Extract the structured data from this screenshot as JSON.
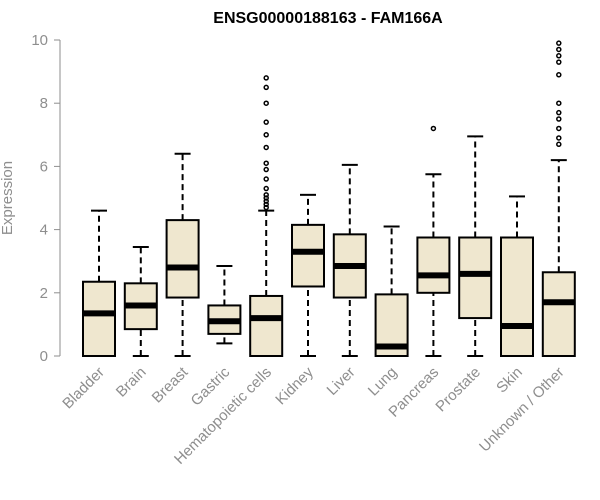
{
  "chart_data": {
    "type": "boxplot",
    "title": "ENSG00000188163 - FAM166A",
    "ylabel": "Expression",
    "xlabel": "",
    "ylim": [
      0,
      10
    ],
    "yticks": [
      0,
      2,
      4,
      6,
      8,
      10
    ],
    "grid": false,
    "colors": {
      "box_fill": "#efe7cf",
      "box_stroke": "#000000",
      "axis": "#8e8e8e",
      "title": "#000000"
    },
    "categories": [
      "Bladder",
      "Brain",
      "Breast",
      "Gastric",
      "Hematopoietic cells",
      "Kidney",
      "Liver",
      "Lung",
      "Pancreas",
      "Prostate",
      "Skin",
      "Unknown / Other"
    ],
    "boxes": [
      {
        "whisker_low": 0,
        "q1": 0,
        "median": 1.35,
        "q3": 2.35,
        "whisker_high": 4.6,
        "outliers": []
      },
      {
        "whisker_low": 0,
        "q1": 0.85,
        "median": 1.6,
        "q3": 2.3,
        "whisker_high": 3.45,
        "outliers": []
      },
      {
        "whisker_low": 0,
        "q1": 1.85,
        "median": 2.8,
        "q3": 4.3,
        "whisker_high": 6.4,
        "outliers": []
      },
      {
        "whisker_low": 0.4,
        "q1": 0.7,
        "median": 1.1,
        "q3": 1.6,
        "whisker_high": 2.85,
        "outliers": []
      },
      {
        "whisker_low": 0,
        "q1": 0,
        "median": 1.2,
        "q3": 1.9,
        "whisker_high": 4.6,
        "outliers": [
          4.7,
          4.8,
          4.9,
          5.0,
          5.1,
          5.3,
          5.6,
          5.9,
          6.1,
          6.6,
          7.0,
          7.4,
          8.0,
          8.5,
          8.8
        ]
      },
      {
        "whisker_low": 0,
        "q1": 2.2,
        "median": 3.3,
        "q3": 4.15,
        "whisker_high": 5.1,
        "outliers": []
      },
      {
        "whisker_low": 0,
        "q1": 1.85,
        "median": 2.85,
        "q3": 3.85,
        "whisker_high": 6.05,
        "outliers": []
      },
      {
        "whisker_low": 0,
        "q1": 0,
        "median": 0.3,
        "q3": 1.95,
        "whisker_high": 4.1,
        "outliers": []
      },
      {
        "whisker_low": 0,
        "q1": 2.0,
        "median": 2.55,
        "q3": 3.75,
        "whisker_high": 5.75,
        "outliers": [
          7.2
        ]
      },
      {
        "whisker_low": 0,
        "q1": 1.2,
        "median": 2.6,
        "q3": 3.75,
        "whisker_high": 6.95,
        "outliers": []
      },
      {
        "whisker_low": 0,
        "q1": 0,
        "median": 0.95,
        "q3": 3.75,
        "whisker_high": 5.05,
        "outliers": []
      },
      {
        "whisker_low": 0,
        "q1": 0,
        "median": 1.7,
        "q3": 2.65,
        "whisker_high": 6.2,
        "outliers": [
          6.7,
          6.9,
          7.2,
          7.5,
          7.7,
          8.0,
          8.9,
          9.3,
          9.5,
          9.7,
          9.9
        ]
      }
    ]
  }
}
